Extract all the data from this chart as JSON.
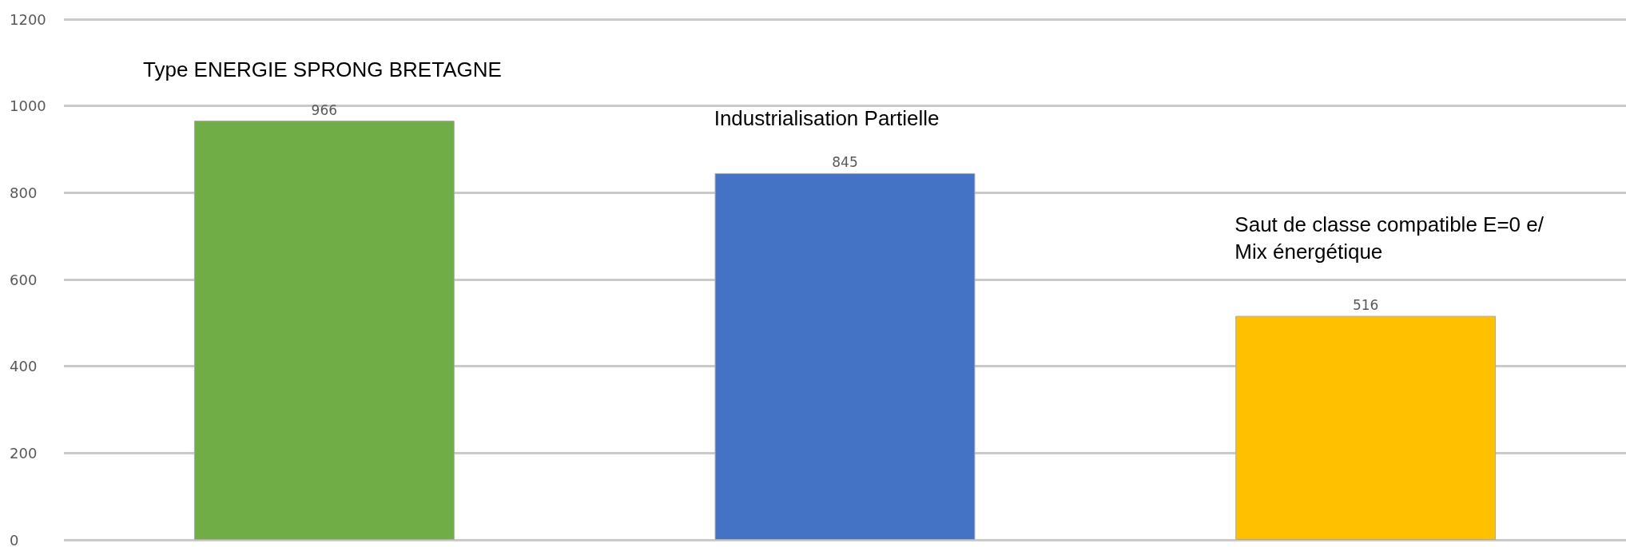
{
  "chart_data": {
    "type": "bar",
    "categories": [
      null,
      null,
      null
    ],
    "values": [
      966,
      845,
      516
    ],
    "colors": [
      "#70ad47",
      "#4472c4",
      "#ffc000"
    ],
    "ylim": [
      0,
      1200
    ],
    "yticks": [
      0,
      200,
      400,
      600,
      800,
      1000,
      1200
    ],
    "grid": "y",
    "tick_labels": "y",
    "data_labels": true,
    "annotations": [
      "Type ENERGIE SPRONG BRETAGNE",
      "Industrialisation Partielle",
      "Saut de classe compatible E=0 e/ Mix énergétique"
    ]
  }
}
